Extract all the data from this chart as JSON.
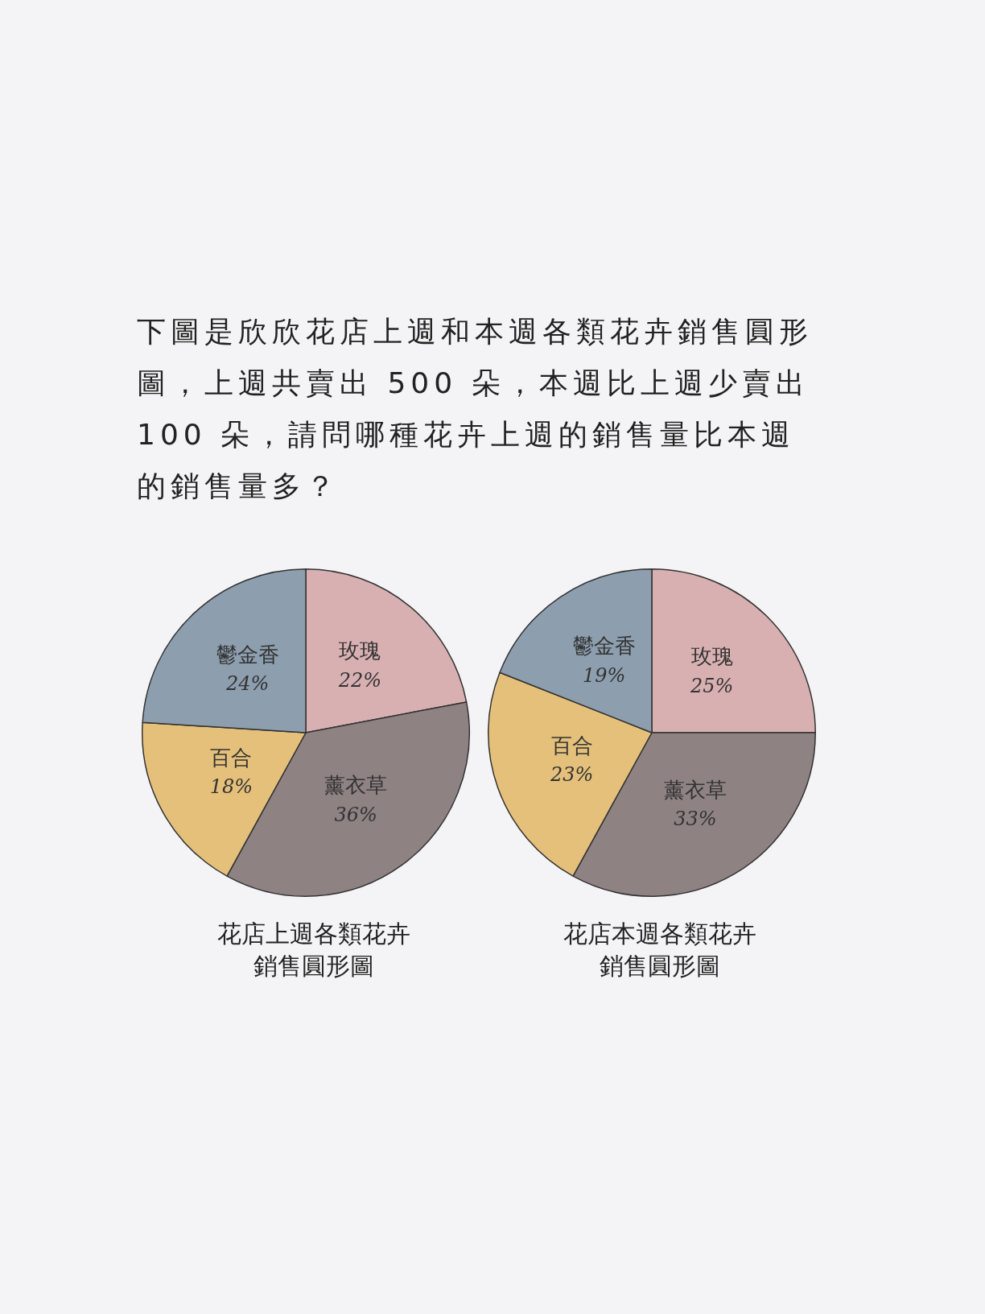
{
  "chart_data": [
    {
      "type": "pie",
      "title": "花店上週各類花卉銷售圓形圖",
      "annotations": [
        "下圖是欣欣花店上週和本週各類花卉銷售圓形圖，上週共賣出 500 朵，本週比上週少賣出 100 朵，請問哪種花卉上週的銷售量比本週的銷售量多？"
      ],
      "categories": [
        "玫瑰",
        "薰衣草",
        "百合",
        "鬱金香"
      ],
      "values": [
        22,
        36,
        18,
        24
      ],
      "value_labels": [
        "22%",
        "36%",
        "18%",
        "24%"
      ],
      "colors": [
        "#d8b0b2",
        "#8e8283",
        "#e5c07a",
        "#8d9eae"
      ],
      "legend": false
    },
    {
      "type": "pie",
      "title": "花店本週各類花卉銷售圓形圖",
      "categories": [
        "玫瑰",
        "薰衣草",
        "百合",
        "鬱金香"
      ],
      "values": [
        25,
        33,
        23,
        19
      ],
      "value_labels": [
        "25%",
        "33%",
        "23%",
        "19%"
      ],
      "colors": [
        "#d8b0b2",
        "#8e8283",
        "#e5c07a",
        "#8d9eae"
      ],
      "legend": false
    }
  ]
}
